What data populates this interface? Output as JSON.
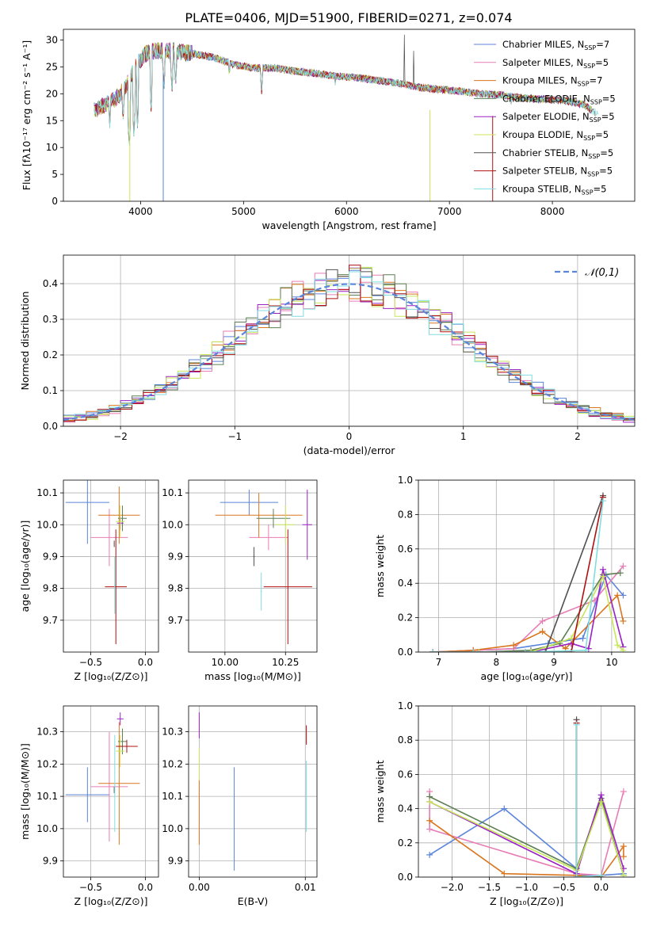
{
  "figure_title": "PLATE=0406, MJD=51900, FIBERID=0271, z=0.074",
  "models": [
    {
      "name": "Chabrier MILES",
      "nssp": "7",
      "color": "#5b84db"
    },
    {
      "name": "Salpeter MILES",
      "nssp": "5",
      "color": "#e87db5"
    },
    {
      "name": "Kroupa MILES",
      "nssp": "7",
      "color": "#d9761e"
    },
    {
      "name": "Chabrier ELODIE",
      "nssp": "5",
      "color": "#5d7f55"
    },
    {
      "name": "Salpeter ELODIE",
      "nssp": "5",
      "color": "#9a22c4"
    },
    {
      "name": "Kroupa ELODIE",
      "nssp": "5",
      "color": "#c8e65a"
    },
    {
      "name": "Chabrier STELIB",
      "nssp": "5",
      "color": "#505050"
    },
    {
      "name": "Salpeter STELIB",
      "nssp": "5",
      "color": "#b01010"
    },
    {
      "name": "Kroupa STELIB",
      "nssp": "5",
      "color": "#80dde0"
    }
  ],
  "chart_data": [
    {
      "id": "spectrum",
      "type": "line",
      "xlabel": "wavelength [Angstrom, rest frame]",
      "ylabel": "Flux [fλ10⁻¹⁷ erg cm⁻² s⁻¹ A⁻¹]",
      "xlim": [
        3250,
        8800
      ],
      "ylim": [
        0,
        32
      ],
      "xticks": [
        4000,
        5000,
        6000,
        7000,
        8000
      ],
      "yticks": [
        0,
        5,
        10,
        15,
        20,
        25,
        30
      ],
      "grid": false,
      "legend_position": "right",
      "continuum": [
        [
          3550,
          17
        ],
        [
          3650,
          18
        ],
        [
          3750,
          19
        ],
        [
          3850,
          21
        ],
        [
          3950,
          25
        ],
        [
          4050,
          27.5
        ],
        [
          4150,
          28
        ],
        [
          4300,
          28
        ],
        [
          4500,
          27.5
        ],
        [
          4700,
          26.8
        ],
        [
          4900,
          25.5
        ],
        [
          5100,
          24.8
        ],
        [
          5300,
          24.8
        ],
        [
          5500,
          24.2
        ],
        [
          5700,
          23.8
        ],
        [
          5900,
          23.3
        ],
        [
          6100,
          23
        ],
        [
          6300,
          22.5
        ],
        [
          6500,
          22
        ],
        [
          6700,
          21.2
        ],
        [
          6900,
          20.8
        ],
        [
          7100,
          20.5
        ],
        [
          7300,
          20
        ],
        [
          7500,
          19.8
        ],
        [
          7700,
          19.2
        ],
        [
          7900,
          19
        ],
        [
          8100,
          18.8
        ],
        [
          8300,
          18
        ],
        [
          8450,
          16
        ]
      ],
      "absorption_dips": [
        [
          3700,
          14
        ],
        [
          3830,
          15
        ],
        [
          3890,
          10
        ],
        [
          3935,
          12
        ],
        [
          3970,
          14
        ],
        [
          4102,
          17
        ],
        [
          4227,
          21
        ],
        [
          4305,
          20.5
        ],
        [
          4340,
          21.5
        ],
        [
          4861,
          23
        ],
        [
          5175,
          20
        ],
        [
          5270,
          24.5
        ],
        [
          5890,
          22
        ],
        [
          6563,
          21.5
        ],
        [
          7600,
          18.5
        ]
      ],
      "spikes": [
        [
          6563,
          31
        ],
        [
          6650,
          28
        ]
      ],
      "deep_dips": [
        [
          3895,
          0
        ],
        [
          4220,
          0
        ],
        [
          6810,
          0
        ],
        [
          7420,
          0
        ]
      ]
    },
    {
      "id": "residual-histogram",
      "type": "histogram",
      "xlabel": "(data-model)/error",
      "ylabel": "Normed distribution",
      "xlim": [
        -2.5,
        2.5
      ],
      "ylim": [
        0,
        0.48
      ],
      "xticks": [
        -2,
        -1,
        0,
        1,
        2
      ],
      "yticks": [
        0.0,
        0.1,
        0.2,
        0.3,
        0.4
      ],
      "bin_width": 0.1,
      "grid": true,
      "legend_position": "top-right",
      "normal_label": "𝒩(0,1)",
      "normal_color": "#5b84db"
    },
    {
      "id": "age-vs-Z",
      "type": "errorbar",
      "xlabel": "Z [log₁₀(Z/Z⊙)]",
      "ylabel": "age  [log₁₀(age/yr)]",
      "xlim": [
        -0.75,
        0.12
      ],
      "ylim": [
        9.6,
        10.14
      ],
      "xticks": [
        -0.5,
        0.0
      ],
      "yticks": [
        9.7,
        9.8,
        9.9,
        10.0,
        10.1
      ],
      "grid": true,
      "points": [
        {
          "model": 0,
          "x": -0.53,
          "xerr": 0.2,
          "y": 10.07,
          "yerr": 0.13
        },
        {
          "model": 1,
          "x": -0.33,
          "xerr": 0.17,
          "y": 9.96,
          "yerr": 0.09
        },
        {
          "model": 2,
          "x": -0.24,
          "xerr": 0.19,
          "y": 10.03,
          "yerr": 0.09
        },
        {
          "model": 3,
          "x": -0.21,
          "xerr": 0.04,
          "y": 10.02,
          "yerr": 0.04
        },
        {
          "model": 4,
          "x": -0.23,
          "xerr": 0.03,
          "y": 10.005,
          "yerr": 0.02
        },
        {
          "model": 5,
          "x": -0.23,
          "xerr": 0.04,
          "y": 10.01,
          "yerr": 0.05
        },
        {
          "model": 6,
          "x": -0.285,
          "xerr": 0.003,
          "y": 9.94,
          "yerr": 0.01
        },
        {
          "model": 7,
          "x": -0.27,
          "xerr": 0.1,
          "y": 9.805,
          "yerr": 0.18
        },
        {
          "model": 8,
          "x": -0.28,
          "xerr": 0.005,
          "y": 9.81,
          "yerr": 0.09
        }
      ]
    },
    {
      "id": "age-vs-mass",
      "type": "errorbar",
      "xlabel": "mass [log₁₀(M/M⊙)]",
      "ylabel": "",
      "xlim": [
        9.85,
        10.38
      ],
      "ylim": [
        9.6,
        10.14
      ],
      "xticks": [
        10.0,
        10.25
      ],
      "yticks": [
        9.7,
        9.8,
        9.9,
        10.0,
        10.1
      ],
      "grid": true,
      "points": [
        {
          "model": 0,
          "x": 10.1,
          "xerr": 0.12,
          "y": 10.07,
          "yerr": 0.04
        },
        {
          "model": 1,
          "x": 10.18,
          "xerr": 0.08,
          "y": 9.96,
          "yerr": 0.04
        },
        {
          "model": 2,
          "x": 10.14,
          "xerr": 0.18,
          "y": 10.03,
          "yerr": 0.07
        },
        {
          "model": 3,
          "x": 10.2,
          "xerr": 0.07,
          "y": 10.02,
          "yerr": 0.03
        },
        {
          "model": 4,
          "x": 10.34,
          "xerr": 0.02,
          "y": 10.0,
          "yerr": 0.11
        },
        {
          "model": 5,
          "x": 10.25,
          "xerr": 0.04,
          "y": 10.0,
          "yerr": 0.06
        },
        {
          "model": 6,
          "x": 10.12,
          "xerr": 0.003,
          "y": 9.9,
          "yerr": 0.03
        },
        {
          "model": 7,
          "x": 10.26,
          "xerr": 0.1,
          "y": 9.805,
          "yerr": 0.18
        },
        {
          "model": 8,
          "x": 10.15,
          "xerr": 0.003,
          "y": 9.79,
          "yerr": 0.06
        }
      ]
    },
    {
      "id": "weight-vs-age",
      "type": "line",
      "xlabel": "age  [log₁₀(age/yr)]",
      "ylabel": "mass weight",
      "xlim": [
        6.65,
        10.4
      ],
      "ylim": [
        0,
        1.0
      ],
      "xticks": [
        7,
        8,
        9,
        10
      ],
      "yticks": [
        0.0,
        0.2,
        0.4,
        0.6,
        0.8,
        1.0
      ],
      "grid": true,
      "series": [
        {
          "model": 0,
          "points": [
            [
              6.9,
              0
            ],
            [
              7.6,
              0.01
            ],
            [
              8.3,
              0.02
            ],
            [
              8.9,
              0.05
            ],
            [
              9.5,
              0.08
            ],
            [
              9.9,
              0.45
            ],
            [
              10.2,
              0.33
            ]
          ]
        },
        {
          "model": 1,
          "points": [
            [
              6.9,
              0
            ],
            [
              7.6,
              0.01
            ],
            [
              8.3,
              0.02
            ],
            [
              8.8,
              0.18
            ],
            [
              9.7,
              0.3
            ],
            [
              10.2,
              0.5
            ]
          ]
        },
        {
          "model": 2,
          "points": [
            [
              6.9,
              0
            ],
            [
              7.6,
              0.01
            ],
            [
              8.3,
              0.04
            ],
            [
              8.8,
              0.12
            ],
            [
              9.2,
              0.02
            ],
            [
              10.1,
              0.33
            ],
            [
              10.2,
              0.18
            ]
          ]
        },
        {
          "model": 3,
          "points": [
            [
              6.9,
              0
            ],
            [
              7.7,
              0
            ],
            [
              8.6,
              0.01
            ],
            [
              9.1,
              0.05
            ],
            [
              9.85,
              0.45
            ],
            [
              10.15,
              0.46
            ]
          ]
        },
        {
          "model": 4,
          "points": [
            [
              6.9,
              0
            ],
            [
              7.7,
              0
            ],
            [
              8.6,
              0
            ],
            [
              9.3,
              0.05
            ],
            [
              9.6,
              0.02
            ],
            [
              9.85,
              0.48
            ],
            [
              10.2,
              0.03
            ]
          ]
        },
        {
          "model": 5,
          "points": [
            [
              6.9,
              0
            ],
            [
              7.7,
              0
            ],
            [
              8.6,
              0
            ],
            [
              9.3,
              0.08
            ],
            [
              9.85,
              0.44
            ],
            [
              10.1,
              0.04
            ],
            [
              10.2,
              0.01
            ]
          ]
        },
        {
          "model": 6,
          "points": [
            [
              6.9,
              0
            ],
            [
              7.6,
              0
            ],
            [
              8.5,
              0
            ],
            [
              8.85,
              0
            ],
            [
              9.85,
              0.91
            ]
          ]
        },
        {
          "model": 7,
          "points": [
            [
              6.9,
              0
            ],
            [
              7.6,
              0
            ],
            [
              8.5,
              0
            ],
            [
              9.3,
              0
            ],
            [
              9.85,
              0.9
            ]
          ]
        },
        {
          "model": 8,
          "points": [
            [
              6.9,
              0
            ],
            [
              7.6,
              0
            ],
            [
              8.5,
              0
            ],
            [
              9.55,
              0.01
            ],
            [
              9.85,
              0.88
            ]
          ]
        }
      ]
    },
    {
      "id": "mass-vs-Z",
      "type": "errorbar",
      "xlabel": "Z [log₁₀(Z/Z⊙)]",
      "ylabel": "mass [log₁₀(M/M⊙)]",
      "xlim": [
        -0.75,
        0.12
      ],
      "ylim": [
        9.85,
        10.38
      ],
      "xticks": [
        -0.5,
        0.0
      ],
      "yticks": [
        9.9,
        10.0,
        10.1,
        10.2,
        10.3
      ],
      "grid": true,
      "points": [
        {
          "model": 0,
          "x": -0.53,
          "xerr": 0.2,
          "y": 10.105,
          "yerr": 0.085
        },
        {
          "model": 1,
          "x": -0.33,
          "xerr": 0.17,
          "y": 10.13,
          "yerr": 0.17
        },
        {
          "model": 2,
          "x": -0.24,
          "xerr": 0.19,
          "y": 10.14,
          "yerr": 0.19
        },
        {
          "model": 3,
          "x": -0.21,
          "xerr": 0.04,
          "y": 10.27,
          "yerr": 0.04
        },
        {
          "model": 4,
          "x": -0.23,
          "xerr": 0.03,
          "y": 10.34,
          "yerr": 0.02
        },
        {
          "model": 5,
          "x": -0.23,
          "xerr": 0.04,
          "y": 10.24,
          "yerr": 0.05
        },
        {
          "model": 6,
          "x": -0.285,
          "xerr": 0.003,
          "y": 10.12,
          "yerr": 0.01
        },
        {
          "model": 7,
          "x": -0.17,
          "xerr": 0.1,
          "y": 10.255,
          "yerr": 0.02
        },
        {
          "model": 8,
          "x": -0.28,
          "xerr": 0.005,
          "y": 10.14,
          "yerr": 0.15
        }
      ]
    },
    {
      "id": "mass-vs-EBV",
      "type": "errorbar",
      "xlabel": "E(B-V)",
      "ylabel": "",
      "xlim": [
        -0.001,
        0.0111
      ],
      "ylim": [
        9.85,
        10.38
      ],
      "xticks": [
        0.0,
        0.01
      ],
      "yticks": [
        9.9,
        10.0,
        10.1,
        10.2,
        10.3
      ],
      "grid": true,
      "points": [
        {
          "model": 0,
          "x": 0.0033,
          "xerr": 0,
          "y": 10.03,
          "yerr": 0.16
        },
        {
          "model": 2,
          "x": 0.0,
          "xerr": 0,
          "y": 10.05,
          "yerr": 0.1
        },
        {
          "model": 4,
          "x": 0.0,
          "xerr": 0,
          "y": 10.32,
          "yerr": 0.04
        },
        {
          "model": 5,
          "x": 0.0,
          "xerr": 0,
          "y": 10.2,
          "yerr": 0.05
        },
        {
          "model": 7,
          "x": 0.0101,
          "xerr": 0,
          "y": 10.29,
          "yerr": 0.03
        },
        {
          "model": 8,
          "x": 0.0101,
          "xerr": 0,
          "y": 10.1,
          "yerr": 0.11
        }
      ]
    },
    {
      "id": "weight-vs-Z",
      "type": "line",
      "xlabel": "Z [log₁₀(Z/Z⊙)]",
      "ylabel": "mass weight",
      "xlim": [
        -2.45,
        0.45
      ],
      "ylim": [
        0,
        1.0
      ],
      "xticks": [
        -2.0,
        -1.5,
        -1.0,
        -0.5,
        0.0
      ],
      "yticks": [
        0.0,
        0.2,
        0.4,
        0.6,
        0.8,
        1.0
      ],
      "grid": true,
      "series": [
        {
          "model": 0,
          "points": [
            [
              -2.3,
              0.13
            ],
            [
              -1.3,
              0.4
            ],
            [
              -0.33,
              0.05
            ],
            [
              -0.33,
              0.01
            ],
            [
              0.0,
              0.01
            ],
            [
              0.3,
              0.02
            ]
          ]
        },
        {
          "model": 1,
          "points": [
            [
              -2.3,
              0.5
            ],
            [
              -2.3,
              0.28
            ],
            [
              -0.33,
              0.02
            ],
            [
              0.0,
              0.01
            ],
            [
              0.3,
              0.5
            ]
          ]
        },
        {
          "model": 2,
          "points": [
            [
              -2.3,
              0.33
            ],
            [
              -1.3,
              0.02
            ],
            [
              -0.33,
              0.01
            ],
            [
              0.0,
              0.0
            ],
            [
              0.3,
              0.18
            ],
            [
              0.3,
              0.12
            ]
          ]
        },
        {
          "model": 3,
          "points": [
            [
              -2.3,
              0.47
            ],
            [
              -0.33,
              0.05
            ],
            [
              0.0,
              0.46
            ],
            [
              0.3,
              0.01
            ]
          ]
        },
        {
          "model": 4,
          "points": [
            [
              -2.3,
              0.44
            ],
            [
              -0.33,
              0.02
            ],
            [
              0.0,
              0.48
            ],
            [
              0.3,
              0.05
            ]
          ]
        },
        {
          "model": 5,
          "points": [
            [
              -2.3,
              0.44
            ],
            [
              -0.33,
              0.04
            ],
            [
              0.0,
              0.44
            ],
            [
              0.3,
              0.01
            ]
          ]
        },
        {
          "model": 6,
          "points": [
            [
              -0.33,
              0.92
            ],
            [
              -0.33,
              0.0
            ],
            [
              0.0,
              0.0
            ]
          ]
        },
        {
          "model": 7,
          "points": [
            [
              -0.33,
              0.9
            ],
            [
              -0.33,
              0.0
            ]
          ]
        },
        {
          "model": 8,
          "points": [
            [
              -0.33,
              0.89
            ],
            [
              -0.33,
              0.0
            ],
            [
              0.0,
              0.01
            ]
          ]
        }
      ]
    }
  ]
}
